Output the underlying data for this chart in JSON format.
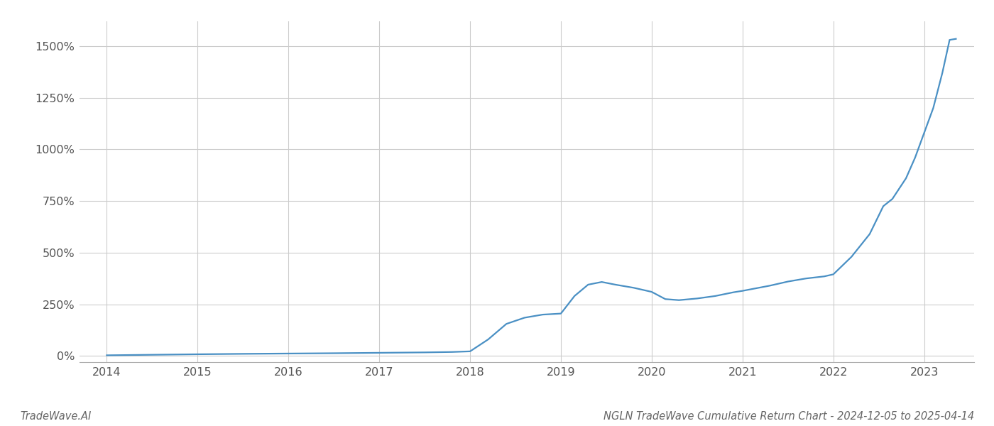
{
  "title": "NGLN TradeWave Cumulative Return Chart - 2024-12-05 to 2025-04-14",
  "watermark": "TradeWave.AI",
  "line_color": "#4a90c4",
  "background_color": "#ffffff",
  "grid_color": "#cccccc",
  "x_years": [
    2014,
    2015,
    2016,
    2017,
    2018,
    2019,
    2020,
    2021,
    2022,
    2023
  ],
  "data_points": [
    [
      2014.0,
      3.0
    ],
    [
      2014.2,
      4.0
    ],
    [
      2014.5,
      5.5
    ],
    [
      2015.0,
      8.0
    ],
    [
      2015.5,
      10.0
    ],
    [
      2016.0,
      11.5
    ],
    [
      2016.5,
      13.0
    ],
    [
      2017.0,
      15.0
    ],
    [
      2017.5,
      17.0
    ],
    [
      2017.8,
      19.0
    ],
    [
      2018.0,
      22.0
    ],
    [
      2018.2,
      80.0
    ],
    [
      2018.4,
      155.0
    ],
    [
      2018.6,
      185.0
    ],
    [
      2018.8,
      200.0
    ],
    [
      2019.0,
      205.0
    ],
    [
      2019.15,
      290.0
    ],
    [
      2019.3,
      345.0
    ],
    [
      2019.45,
      358.0
    ],
    [
      2019.6,
      345.0
    ],
    [
      2019.8,
      330.0
    ],
    [
      2020.0,
      310.0
    ],
    [
      2020.15,
      275.0
    ],
    [
      2020.3,
      270.0
    ],
    [
      2020.5,
      278.0
    ],
    [
      2020.7,
      290.0
    ],
    [
      2020.9,
      308.0
    ],
    [
      2021.0,
      315.0
    ],
    [
      2021.3,
      340.0
    ],
    [
      2021.5,
      360.0
    ],
    [
      2021.7,
      375.0
    ],
    [
      2021.9,
      385.0
    ],
    [
      2022.0,
      395.0
    ],
    [
      2022.2,
      480.0
    ],
    [
      2022.4,
      590.0
    ],
    [
      2022.5,
      680.0
    ],
    [
      2022.55,
      725.0
    ],
    [
      2022.65,
      760.0
    ],
    [
      2022.8,
      860.0
    ],
    [
      2022.9,
      960.0
    ],
    [
      2023.0,
      1080.0
    ],
    [
      2023.1,
      1200.0
    ],
    [
      2023.2,
      1370.0
    ],
    [
      2023.28,
      1530.0
    ],
    [
      2023.35,
      1535.0
    ]
  ],
  "ylim": [
    -30,
    1620
  ],
  "yticks": [
    0,
    250,
    500,
    750,
    1000,
    1250,
    1500
  ],
  "xlim": [
    2013.7,
    2023.55
  ],
  "title_fontsize": 10.5,
  "watermark_fontsize": 10.5,
  "tick_fontsize": 11.5,
  "line_width": 1.6
}
